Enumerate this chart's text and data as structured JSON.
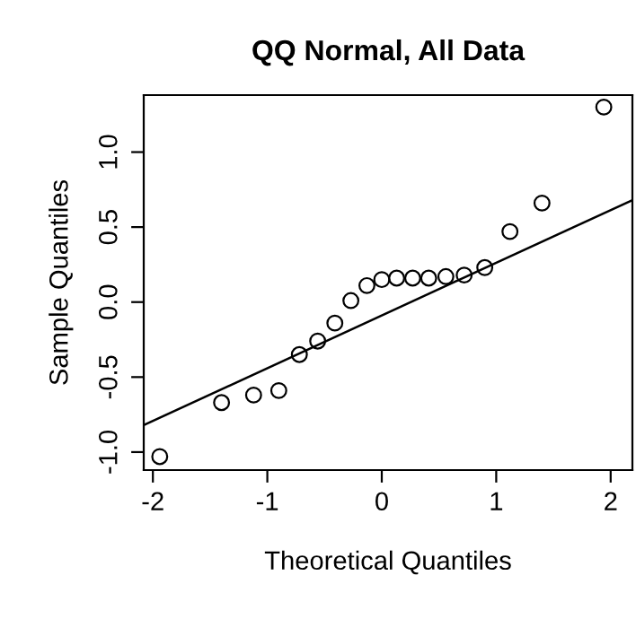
{
  "chart_data": {
    "type": "scatter",
    "title": "QQ Normal, All Data",
    "xlabel": "Theoretical Quantiles",
    "ylabel": "Sample Quantiles",
    "xlim": [
      -2.08,
      2.19
    ],
    "ylim": [
      -1.12,
      1.38
    ],
    "xticks": [
      -2,
      -1,
      0,
      1,
      2
    ],
    "yticks": [
      {
        "value": -1.0,
        "label": "-1.0"
      },
      -0.5,
      {
        "value": 0.0,
        "label": "0.0"
      },
      0.5,
      {
        "value": 1.0,
        "label": "1.0"
      }
    ],
    "grid": false,
    "series": [
      {
        "color": "#000000",
        "marker": "circle",
        "x": [
          -1.94,
          -1.4,
          -1.12,
          -0.9,
          -0.72,
          -0.56,
          -0.41,
          -0.27,
          -0.13,
          0.0,
          0.13,
          0.27,
          0.41,
          0.56,
          0.72,
          0.9,
          1.12,
          1.4,
          1.94
        ],
        "values": [
          -1.03,
          -0.67,
          -0.62,
          -0.59,
          -0.35,
          -0.26,
          -0.14,
          0.01,
          0.11,
          0.15,
          0.16,
          0.16,
          0.16,
          0.17,
          0.18,
          0.23,
          0.47,
          0.66,
          1.3
        ]
      },
      {
        "type": "line",
        "color": "#000000",
        "x": [
          -2.08,
          2.19
        ],
        "values": [
          -0.82,
          0.68
        ]
      }
    ]
  }
}
